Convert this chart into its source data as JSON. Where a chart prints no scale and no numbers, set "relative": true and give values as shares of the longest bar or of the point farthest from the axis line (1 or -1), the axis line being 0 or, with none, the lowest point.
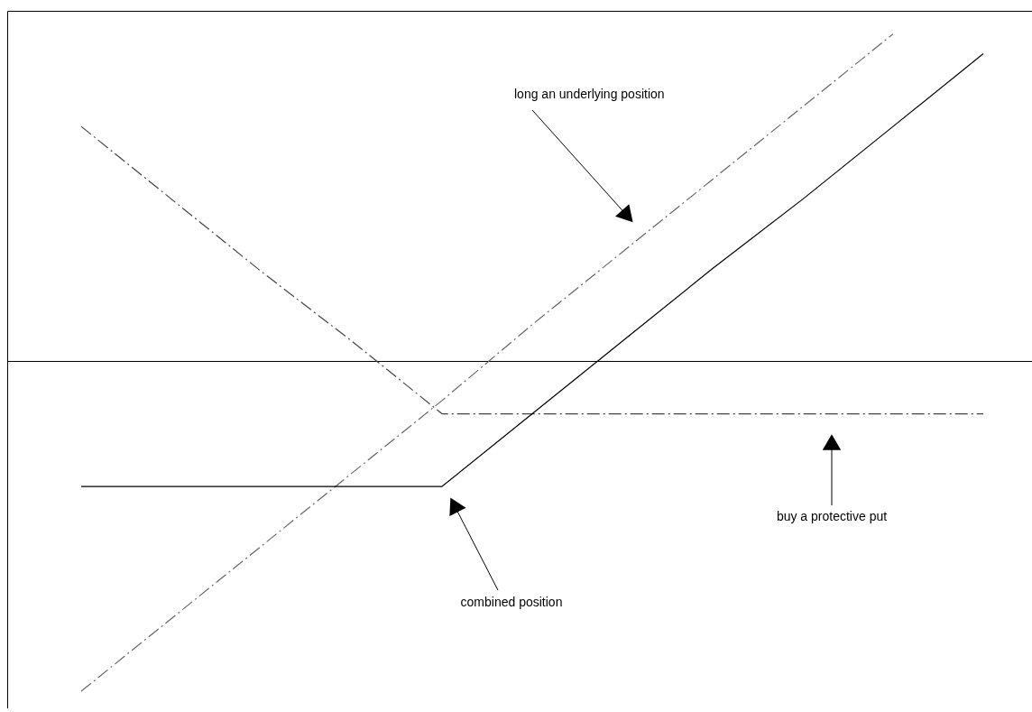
{
  "chart_data": {
    "type": "line",
    "relative": true,
    "categories": [
      null,
      null,
      null,
      null,
      null,
      null,
      null,
      null,
      null,
      null,
      null
    ],
    "series": [
      {
        "color": "#666666",
        "line_style": "dashed",
        "values": [
          -1,
          -0.78,
          -0.56,
          -0.34,
          -0.12,
          0.11,
          0.33,
          0.55,
          0.77,
          0.99,
          null
        ]
      },
      {
        "color": "#444444",
        "line_style": "dashed",
        "values": [
          0.71,
          0.49,
          0.27,
          0.06,
          -0.16,
          -0.16,
          -0.16,
          -0.16,
          -0.16,
          -0.16,
          -0.16
        ]
      },
      {
        "color": "#000000",
        "line_style": "solid",
        "values": [
          -0.38,
          -0.38,
          -0.38,
          -0.38,
          -0.38,
          -0.16,
          0.06,
          0.28,
          0.49,
          0.71,
          0.93
        ]
      }
    ],
    "annotations": [
      "long an underlying position",
      "buy a protective put",
      "combined position"
    ]
  }
}
